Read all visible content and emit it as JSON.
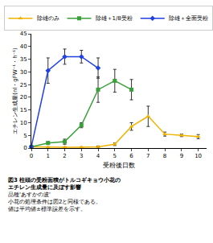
{
  "chart_data": {
    "type": "line",
    "title": "図3 柱頭の受粉面積がトルコギキョウ小花のエチレン生成量に及ぼす影響",
    "x_label": "受粉後日数",
    "y_label": "エチレン生成量(nl・gFW⁻¹・h⁻¹)",
    "x": [
      0,
      1,
      2,
      3,
      4,
      5,
      6,
      7,
      8,
      9,
      10
    ],
    "series": [
      {
        "name": "除雄のみ",
        "color": "#f0b400",
        "marker": "triangle-up",
        "values": [
          0.5,
          0.3,
          0.3,
          0.3,
          0.5,
          1.5,
          8.5,
          12.5,
          5.5,
          5,
          4.5
        ],
        "error": [
          0.2,
          0.2,
          0.2,
          0.2,
          0.3,
          0.5,
          1.5,
          4,
          0.8,
          0.5,
          0.8
        ]
      },
      {
        "name": "除雄＋1/8受粉",
        "color": "#3aa03a",
        "marker": "square",
        "values": [
          0.5,
          2,
          2.5,
          9,
          23,
          26.5,
          23,
          null,
          null,
          null,
          null
        ],
        "error": [
          0.2,
          0.5,
          1,
          1,
          5,
          4.5,
          4,
          null,
          null,
          null,
          null
        ]
      },
      {
        "name": "除雄＋全面受粉",
        "color": "#2040e0",
        "marker": "diamond",
        "values": [
          0.5,
          30.5,
          36,
          36,
          31.5,
          null,
          null,
          null,
          null,
          null,
          null
        ],
        "error": [
          0.2,
          5,
          3,
          2.5,
          4,
          null,
          null,
          null,
          null,
          null,
          null
        ]
      }
    ],
    "xlim": [
      0,
      10.5
    ],
    "xticks": [
      0,
      1,
      2,
      3,
      4,
      5,
      6,
      7,
      8,
      9,
      10
    ],
    "ylim": [
      0,
      45
    ],
    "yticks": [
      0,
      5,
      10,
      15,
      20,
      25,
      30,
      35,
      40,
      45
    ],
    "grid": false,
    "legend": "top",
    "annotations": [
      "品種'あすかの波'",
      "小花の処理条件は図2と同様である。",
      "値は平均値±標準誤差を示す。"
    ]
  }
}
